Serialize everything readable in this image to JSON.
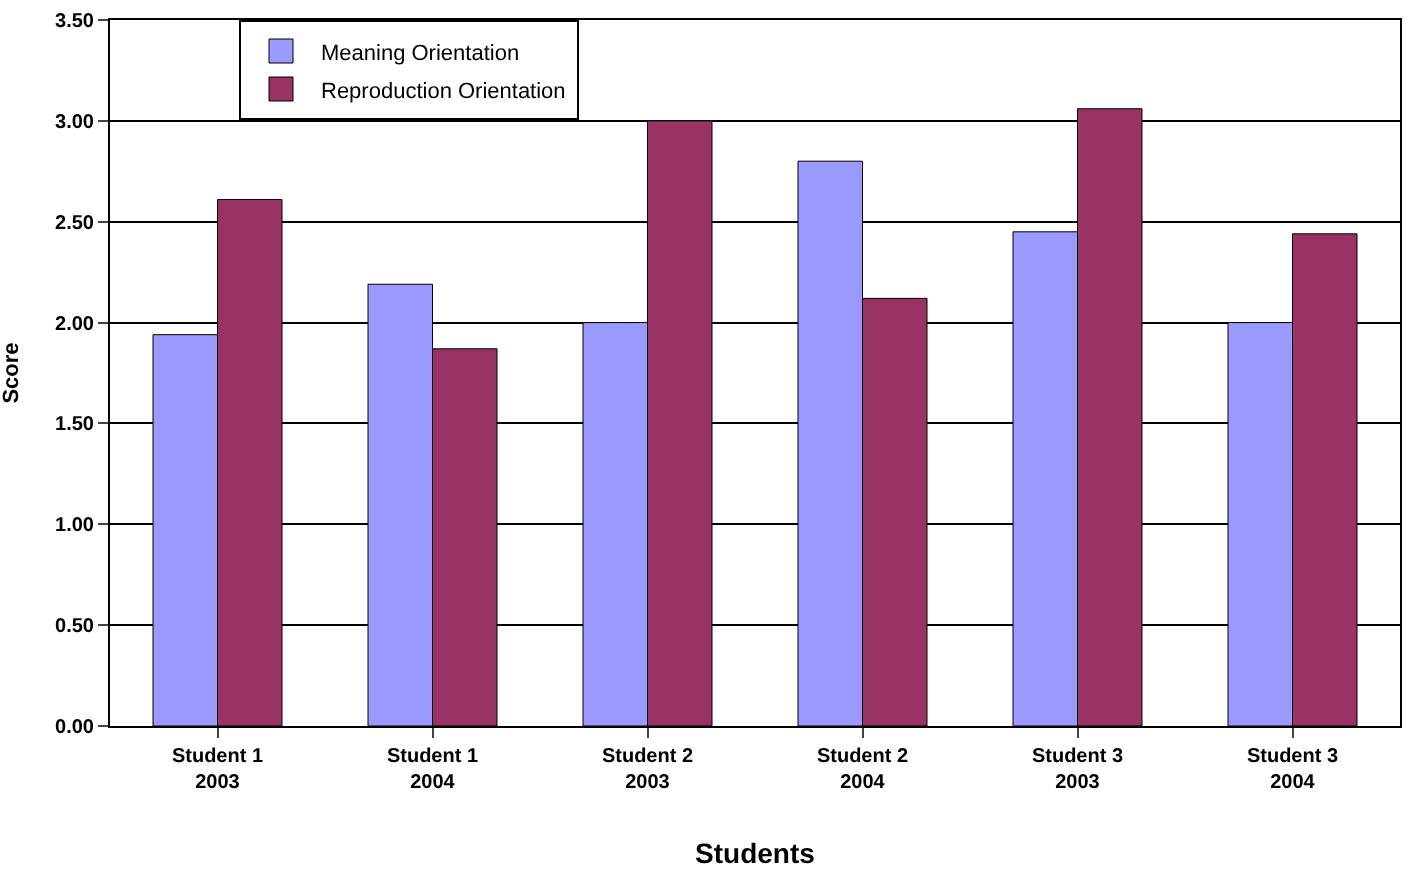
{
  "chart_data": {
    "type": "bar",
    "xlabel": "Students",
    "ylabel": "Score",
    "categories": [
      "Student 1\n2003",
      "Student 1\n2004",
      "Student 2\n2003",
      "Student 2\n2004",
      "Student 3\n2003",
      "Student 3\n2004"
    ],
    "series": [
      {
        "name": "Meaning Orientation",
        "color": "#9999ff",
        "values": [
          1.94,
          2.19,
          2.0,
          2.8,
          2.45,
          2.0
        ]
      },
      {
        "name": "Reproduction Orientation",
        "color": "#993366",
        "values": [
          2.61,
          1.87,
          3.0,
          2.12,
          3.06,
          2.44
        ]
      }
    ],
    "ylim": [
      0,
      3.5
    ],
    "yticks": [
      {
        "value": 0,
        "label": "0.00"
      },
      {
        "value": 0.5,
        "label": "0.50"
      },
      {
        "value": 1,
        "label": "1.00"
      },
      {
        "value": 1.5,
        "label": "1.50"
      },
      {
        "value": 2,
        "label": "2.00"
      },
      {
        "value": 2.5,
        "label": "2.50"
      },
      {
        "value": 3,
        "label": "3.00"
      },
      {
        "value": 3.5,
        "label": "3.50"
      }
    ],
    "grid": "y",
    "legend": "top left"
  }
}
